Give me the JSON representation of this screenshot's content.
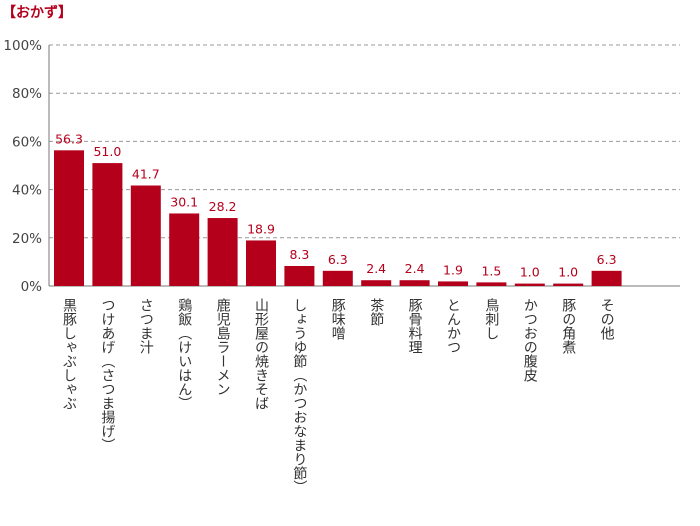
{
  "title": "【おかず】",
  "colors": {
    "bar": "#b5001c",
    "title": "#b5001c",
    "value_label": "#b5001c",
    "grid": "#999999",
    "axis": "#777777"
  },
  "chart_data": {
    "type": "bar",
    "title": "【おかず】",
    "xlabel": "",
    "ylabel": "",
    "ylim": [
      0,
      100
    ],
    "yticks": [
      "0%",
      "20%",
      "40%",
      "60%",
      "80%",
      "100%"
    ],
    "ytick_values": [
      0,
      20,
      40,
      60,
      80,
      100
    ],
    "grid": true,
    "grid_style": "dashed",
    "categories": [
      "黒豚しゃぶしゃぶ",
      "つけあげ（さつま揚げ）",
      "さつま汁",
      "鶏飯（けいはん）",
      "鹿児島ラーメン",
      "山形屋の焼きそば",
      "しょうゆ節（かつおなまり節）",
      "豚味噌",
      "茶節",
      "豚骨料理",
      "とんかつ",
      "鳥刺し",
      "かつおの腹皮",
      "豚の角煮",
      "その他"
    ],
    "values": [
      56.3,
      51.0,
      41.7,
      30.1,
      28.2,
      18.9,
      8.3,
      6.3,
      2.4,
      2.4,
      1.9,
      1.5,
      1.0,
      1.0,
      6.3
    ],
    "value_labels": [
      "56.3",
      "51.0",
      "41.7",
      "30.1",
      "28.2",
      "18.9",
      "8.3",
      "6.3",
      "2.4",
      "2.4",
      "1.9",
      "1.5",
      "1.0",
      "1.0",
      "6.3"
    ]
  }
}
